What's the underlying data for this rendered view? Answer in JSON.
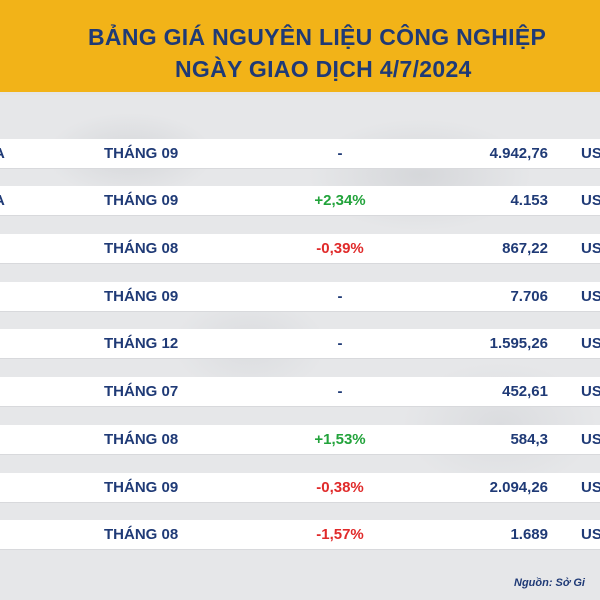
{
  "header": {
    "title_line1": "BẢNG GIÁ NGUYÊN LIỆU CÔNG NGHIỆP",
    "title_line2": "NGÀY GIAO DỊCH 4/7/2024"
  },
  "rows": [
    {
      "name": "A",
      "month": "THÁNG 09",
      "change": "-",
      "price": "4.942,76",
      "unit": "US"
    },
    {
      "name": "A",
      "month": "THÁNG 09",
      "change": "+2,34%",
      "price": "4.153",
      "unit": "US"
    },
    {
      "name": "",
      "month": "THÁNG 08",
      "change": "-0,39%",
      "price": "867,22",
      "unit": "US"
    },
    {
      "name": "",
      "month": "THÁNG 09",
      "change": "-",
      "price": "7.706",
      "unit": "US"
    },
    {
      "name": "",
      "month": "THÁNG 12",
      "change": "-",
      "price": "1.595,26",
      "unit": "US"
    },
    {
      "name": "",
      "month": "THÁNG 07",
      "change": "-",
      "price": "452,61",
      "unit": "US"
    },
    {
      "name": "",
      "month": "THÁNG 08",
      "change": "+1,53%",
      "price": "584,3",
      "unit": "US"
    },
    {
      "name": "",
      "month": "THÁNG 09",
      "change": "-0,38%",
      "price": "2.094,26",
      "unit": "US"
    },
    {
      "name": "",
      "month": "THÁNG 08",
      "change": "-1,57%",
      "price": "1.689",
      "unit": "US"
    }
  ],
  "footer": {
    "source": "Nguồn: Sở Gi"
  },
  "colors": {
    "header_bg": "#f2b318",
    "title_text": "#1f3a76",
    "positive": "#22a33b",
    "negative": "#e02a2a"
  }
}
